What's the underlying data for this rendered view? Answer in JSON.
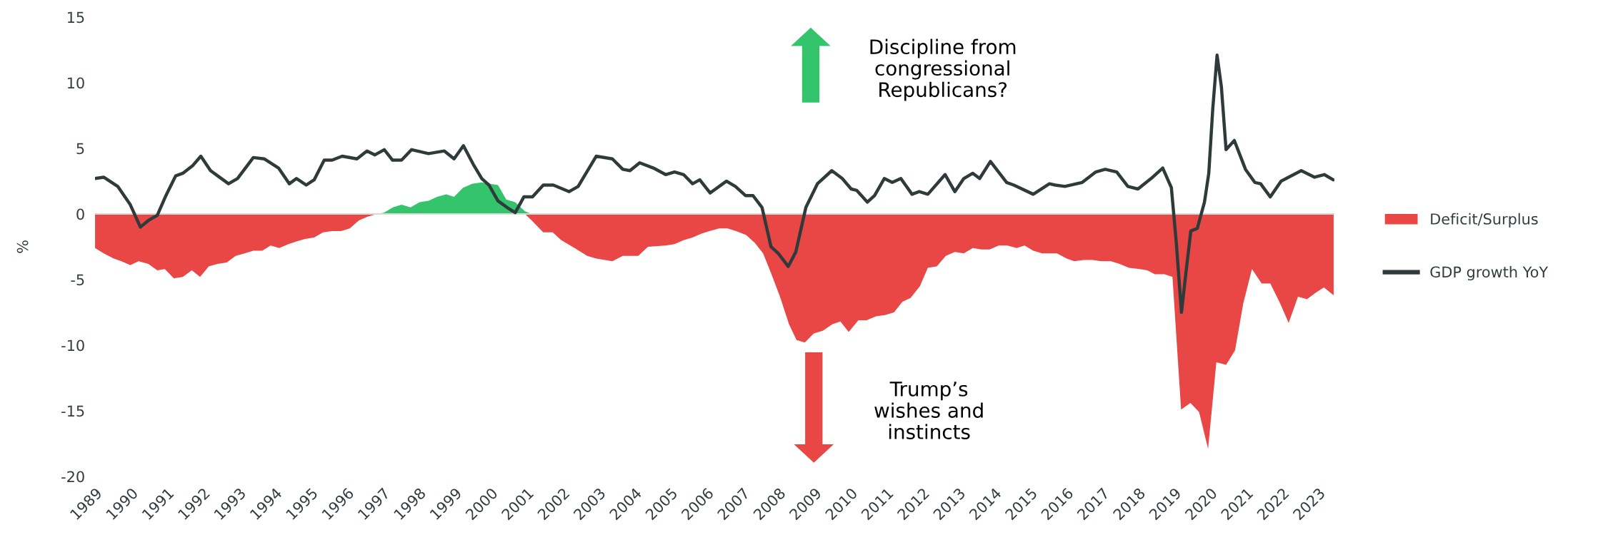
{
  "chart_data": {
    "type": "area",
    "ylabel": "%",
    "xlim": [
      1989,
      2023.45
    ],
    "xticks": [
      1989,
      1990,
      1991,
      1992,
      1993,
      1994,
      1995,
      1996,
      1997,
      1998,
      1999,
      2000,
      2001,
      2002,
      2003,
      2004,
      2005,
      2006,
      2007,
      2008,
      2009,
      2010,
      2011,
      2012,
      2013,
      2014,
      2015,
      2016,
      2017,
      2018,
      2019,
      2020,
      2021,
      2022,
      2023
    ],
    "ylim": [
      -20,
      15
    ],
    "yticks": [
      -20,
      -15,
      -10,
      -5,
      0,
      5,
      10,
      15
    ],
    "grid": false,
    "legend": "right",
    "ref_lines": [
      {
        "axis": "y",
        "value": 0,
        "color": "#d9d9d9"
      }
    ],
    "annotations": [
      "Discipline from\ncongressional\nRepublicans?",
      "Trump’s\nwishes and\ninstincts"
    ],
    "series": [
      {
        "name": "Deficit/Surplus",
        "color": "#e94646",
        "x": [
          1989.0,
          1989.24,
          1989.52,
          1989.73,
          1989.98,
          1990.21,
          1990.48,
          1990.73,
          1990.94,
          1991.19,
          1991.44,
          1991.69,
          1991.92,
          1992.16,
          1992.41,
          1992.66,
          1992.91,
          1993.16,
          1993.4,
          1993.65,
          1993.88,
          1994.12,
          1994.38,
          1994.6,
          1994.84,
          1995.09,
          1995.34,
          1995.59,
          1995.84,
          1996.08,
          1996.33,
          1996.58,
          1996.83,
          1997.03,
          1997.28,
          1997.52,
          1997.77,
          1998.02,
          1998.27,
          1998.51,
          1998.76,
          1998.98,
          1999.23,
          1999.48,
          1999.74,
          1999.98,
          2000.2,
          2000.43,
          2000.68,
          2000.95,
          2001.14,
          2001.46,
          2001.72,
          2001.96,
          2002.33,
          2002.68,
          2002.93,
          2003.38,
          2003.67,
          2004.1,
          2004.37,
          2004.86,
          2005.11,
          2005.36,
          2005.61,
          2005.86,
          2006.08,
          2006.35,
          2006.58,
          2006.82,
          2007.1,
          2007.34,
          2007.57,
          2007.79,
          2008.04,
          2008.29,
          2008.5,
          2008.73,
          2008.98,
          2009.23,
          2009.5,
          2009.72,
          2009.95,
          2010.22,
          2010.45,
          2010.71,
          2010.96,
          2011.21,
          2011.44,
          2011.67,
          2011.93,
          2012.15,
          2012.4,
          2012.65,
          2012.9,
          2013.15,
          2013.4,
          2013.63,
          2013.87,
          2014.12,
          2014.36,
          2014.62,
          2014.84,
          2015.08,
          2015.33,
          2015.74,
          2016.01,
          2016.22,
          2016.49,
          2016.73,
          2016.97,
          2017.24,
          2017.48,
          2017.74,
          2018.04,
          2018.25,
          2018.46,
          2018.73,
          2018.95,
          2019.19,
          2019.45,
          2019.69,
          2019.94,
          2020.17,
          2020.44,
          2020.69,
          2020.92,
          2021.16,
          2021.43,
          2021.67,
          2021.94,
          2022.18,
          2022.44,
          2022.69,
          2022.93,
          2023.16,
          2023.43
        ],
        "values": [
          -2.6,
          -3.0,
          -3.4,
          -3.6,
          -3.9,
          -3.6,
          -3.8,
          -4.3,
          -4.2,
          -4.9,
          -4.8,
          -4.3,
          -4.8,
          -4.0,
          -3.8,
          -3.7,
          -3.2,
          -3.0,
          -2.8,
          -2.8,
          -2.4,
          -2.6,
          -2.3,
          -2.1,
          -1.9,
          -1.8,
          -1.4,
          -1.3,
          -1.3,
          -1.1,
          -0.5,
          -0.2,
          0,
          0,
          0,
          0,
          0,
          0,
          0,
          0,
          0,
          0,
          0,
          0,
          0,
          0,
          0,
          0,
          0,
          0,
          -0.5,
          -1.4,
          -1.4,
          -2.0,
          -2.6,
          -3.2,
          -3.4,
          -3.6,
          -3.2,
          -3.2,
          -2.5,
          -2.4,
          -2.3,
          -2.0,
          -1.8,
          -1.5,
          -1.3,
          -1.1,
          -1.1,
          -1.3,
          -1.6,
          -2.2,
          -3.0,
          -4.5,
          -6.3,
          -8.4,
          -9.6,
          -9.8,
          -9.1,
          -8.9,
          -8.4,
          -8.2,
          -9.0,
          -8.1,
          -8.1,
          -7.8,
          -7.7,
          -7.5,
          -6.7,
          -6.4,
          -5.5,
          -4.1,
          -4.0,
          -3.2,
          -2.9,
          -3.0,
          -2.6,
          -2.7,
          -2.7,
          -2.4,
          -2.4,
          -2.6,
          -2.4,
          -2.8,
          -3.0,
          -3.0,
          -3.4,
          -3.6,
          -3.5,
          -3.5,
          -3.6,
          -3.6,
          -3.8,
          -4.1,
          -4.2,
          -4.3,
          -4.6,
          -4.6,
          -4.8,
          -14.9,
          -14.4,
          -15.1,
          -17.9,
          -11.3,
          -11.5,
          -10.4,
          -6.8,
          -4.2,
          -5.3,
          -5.3,
          -6.8,
          -8.3,
          -6.3,
          -6.5,
          -6.0,
          -5.6,
          -6.2
        ]
      },
      {
        "color": "#34c46c",
        "x": [
          1996.83,
          1997.03,
          1997.28,
          1997.52,
          1997.77,
          1998.02,
          1998.27,
          1998.51,
          1998.76,
          1998.98,
          1999.23,
          1999.48,
          1999.74,
          1999.98,
          2000.2,
          2000.43,
          2000.68,
          2000.95,
          2001.14
        ],
        "values": [
          0,
          0.1,
          0.5,
          0.7,
          0.5,
          0.9,
          1.0,
          1.3,
          1.5,
          1.3,
          2.0,
          2.3,
          2.4,
          2.3,
          2.2,
          1.1,
          0.9,
          0.2,
          0
        ]
      },
      {
        "name": "GDP growth YoY",
        "type": "line",
        "color": "#2f3b3b",
        "x": [
          1989.0,
          1989.24,
          1989.63,
          1989.98,
          1990.26,
          1990.48,
          1990.73,
          1990.97,
          1991.24,
          1991.44,
          1991.72,
          1991.94,
          1992.21,
          1992.41,
          1992.71,
          1992.96,
          1993.4,
          1993.7,
          1994.1,
          1994.4,
          1994.6,
          1994.87,
          1995.09,
          1995.37,
          1995.59,
          1995.87,
          1996.28,
          1996.56,
          1996.78,
          1997.04,
          1997.27,
          1997.52,
          1997.8,
          1998.27,
          1998.71,
          1998.98,
          1999.24,
          1999.51,
          1999.75,
          1999.95,
          2000.2,
          2000.45,
          2000.68,
          2000.92,
          2001.16,
          2001.46,
          2001.74,
          2002.18,
          2002.43,
          2002.93,
          2003.38,
          2003.67,
          2003.87,
          2004.14,
          2004.52,
          2004.86,
          2005.11,
          2005.36,
          2005.61,
          2005.81,
          2006.1,
          2006.55,
          2006.8,
          2007.08,
          2007.29,
          2007.54,
          2007.79,
          2007.99,
          2008.27,
          2008.48,
          2008.76,
          2009.08,
          2009.48,
          2009.77,
          2010.02,
          2010.17,
          2010.47,
          2010.67,
          2010.94,
          2011.16,
          2011.4,
          2011.71,
          2011.91,
          2012.15,
          2012.63,
          2012.9,
          2013.15,
          2013.4,
          2013.59,
          2013.89,
          2014.34,
          2014.54,
          2015.08,
          2015.53,
          2015.69,
          2015.96,
          2016.44,
          2016.82,
          2017.08,
          2017.4,
          2017.71,
          2017.99,
          2018.4,
          2018.68,
          2018.92,
          2019.06,
          2019.2,
          2019.32,
          2019.46,
          2019.64,
          2019.84,
          2019.96,
          2020.07,
          2020.19,
          2020.31,
          2020.44,
          2020.67,
          2020.98,
          2021.24,
          2021.4,
          2021.67,
          2021.97,
          2022.53,
          2022.9,
          2023.17,
          2023.42
        ],
        "values": [
          2.7,
          2.8,
          2.1,
          0.7,
          -1.0,
          -0.5,
          -0.1,
          1.4,
          2.9,
          3.1,
          3.7,
          4.4,
          3.3,
          2.9,
          2.3,
          2.7,
          4.3,
          4.2,
          3.5,
          2.3,
          2.7,
          2.2,
          2.6,
          4.1,
          4.1,
          4.4,
          4.2,
          4.8,
          4.5,
          4.9,
          4.1,
          4.1,
          4.9,
          4.6,
          4.8,
          4.2,
          5.2,
          3.8,
          2.7,
          2.2,
          1.0,
          0.5,
          0.1,
          1.3,
          1.3,
          2.2,
          2.2,
          1.7,
          2.1,
          4.4,
          4.2,
          3.4,
          3.3,
          3.9,
          3.5,
          3.0,
          3.2,
          3.0,
          2.3,
          2.6,
          1.6,
          2.5,
          2.1,
          1.4,
          1.4,
          0.5,
          -2.5,
          -3.0,
          -4.0,
          -2.9,
          0.5,
          2.3,
          3.3,
          2.7,
          1.9,
          1.8,
          0.9,
          1.4,
          2.7,
          2.4,
          2.7,
          1.5,
          1.7,
          1.5,
          3.0,
          1.7,
          2.7,
          3.1,
          2.7,
          4.0,
          2.4,
          2.2,
          1.5,
          2.3,
          2.2,
          2.1,
          2.4,
          3.2,
          3.4,
          3.2,
          2.1,
          1.9,
          2.8,
          3.5,
          2.0,
          -2.3,
          -7.5,
          -4.6,
          -1.3,
          -1.1,
          0.9,
          3.1,
          8.0,
          12.1,
          9.7,
          4.9,
          5.6,
          3.4,
          2.4,
          2.3,
          1.3,
          2.5,
          3.3,
          2.8,
          3.0,
          2.6
        ]
      }
    ]
  }
}
